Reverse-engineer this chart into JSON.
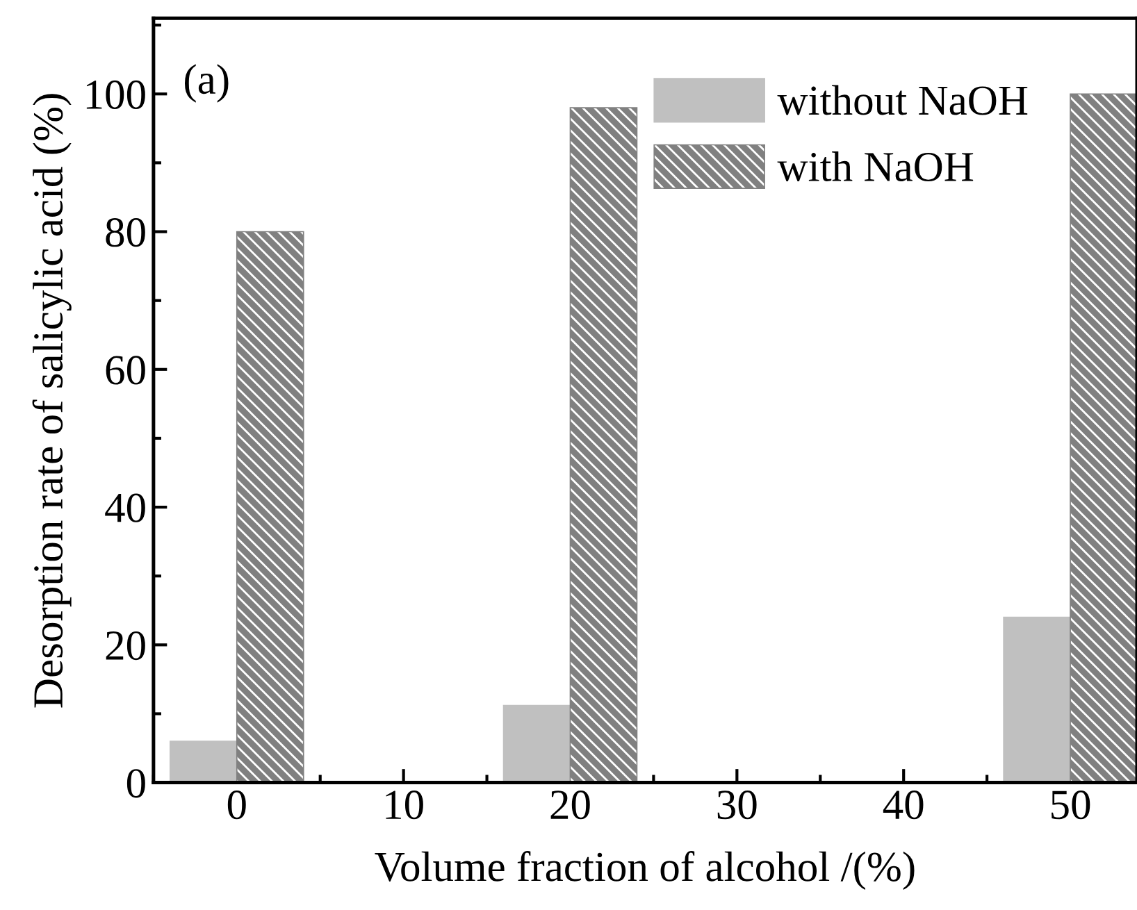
{
  "chart_data": {
    "type": "bar",
    "xlabel": "Volume fraction of alcohol /(%)",
    "ylabel": "Desorption rate of salicylic acid (%)",
    "annotations": [
      "(a)"
    ],
    "x": [
      0,
      20,
      50
    ],
    "series": [
      {
        "name": "without NaOH",
        "color": "#c0c0c0",
        "values": [
          6,
          11.2,
          24
        ]
      },
      {
        "name": "with NaOH",
        "color": "#808080",
        "values": [
          80,
          98,
          100
        ]
      }
    ],
    "xlim": [
      -5,
      54
    ],
    "xticks": [
      0,
      10,
      20,
      30,
      40,
      50
    ],
    "ylim": [
      0,
      111
    ],
    "yticks": [
      0,
      20,
      40,
      60,
      80,
      100
    ],
    "grid": false,
    "legend": "top right"
  }
}
